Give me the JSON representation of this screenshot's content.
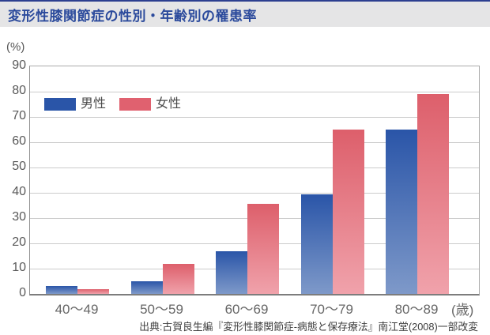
{
  "header": {
    "title": "変形性膝関節症の性別・年齢別の罹患率"
  },
  "chart_data": {
    "type": "bar",
    "title": "変形性膝関節症の性別・年齢別の罹患率",
    "categories": [
      "40〜49",
      "50〜59",
      "60〜69",
      "70〜79",
      "80〜89"
    ],
    "series": [
      {
        "name": "男性",
        "values": [
          3,
          5,
          17,
          39.5,
          65
        ],
        "color_top": "#2a55a8",
        "color_bottom": "#7e99c9",
        "legend_color": "#2a55a8"
      },
      {
        "name": "女性",
        "values": [
          2,
          12,
          35.5,
          65,
          79
        ],
        "color_top": "#dd5f6b",
        "color_bottom": "#f0a2ab",
        "legend_color": "#e0616f"
      }
    ],
    "y_axis": {
      "unit_label": "(%)",
      "min": 0,
      "max": 90,
      "tick_step": 10,
      "ticks": [
        90,
        80,
        70,
        60,
        50,
        40,
        30,
        20,
        10,
        0
      ]
    },
    "x_axis": {
      "unit_label": "(歳)"
    },
    "grid": true,
    "legend_position": "top-left-inside"
  },
  "footer": {
    "source": "出典:古賀良生編『変形性膝関節症-病態と保存療法』南江堂(2008)一部改変"
  },
  "colors": {
    "accent_line": "#2c3f90",
    "header_band_bg": "#e5e5e6",
    "title_text": "#2b4a9c",
    "gridline": "#cbcbcb",
    "axis_text": "#595959",
    "source_text": "#3e3e3e"
  }
}
